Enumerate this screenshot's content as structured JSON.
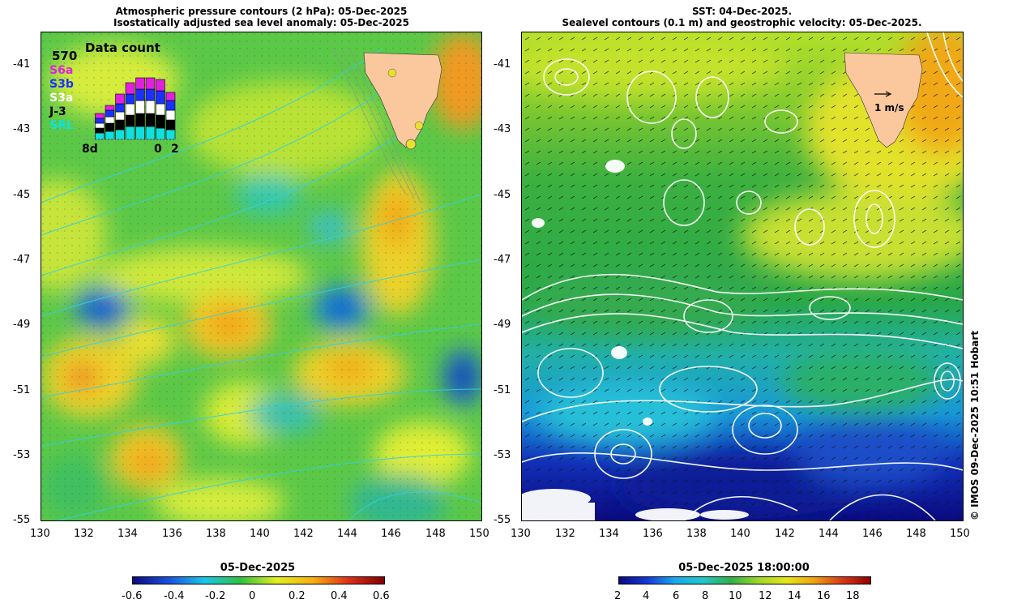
{
  "left_panel": {
    "title_line1": "Atmospheric pressure contours (2 hPa): 05-Dec-2025",
    "title_line2": "Isostatically adjusted sea level anomaly: 05-Dec-2025",
    "inset": {
      "title": "Data count",
      "count": "570",
      "missions": [
        {
          "label": "S6a",
          "color": "#e020e0"
        },
        {
          "label": "S3b",
          "color": "#1a30ff"
        },
        {
          "label": "S3a",
          "color": "#ffffff"
        },
        {
          "label": "J-3",
          "color": "#000000"
        },
        {
          "label": "SRL",
          "color": "#10e0e0"
        }
      ],
      "x_start": "8d",
      "x_mid": "0",
      "x_end": "2"
    },
    "colorbar": {
      "title": "05-Dec-2025",
      "ticks": [
        "-0.6",
        "-0.4",
        "-0.2",
        "0",
        "0.2",
        "0.4",
        "0.6"
      ]
    }
  },
  "right_panel": {
    "title_line1": "SST: 04-Dec-2025.",
    "title_line2": "Sealevel contours (0.1 m) and geostrophic velocity: 05-Dec-2025.",
    "velocity_label": "1 m/s",
    "colorbar": {
      "title": "05-Dec-2025 18:00:00",
      "ticks": [
        "2",
        "4",
        "6",
        "8",
        "10",
        "12",
        "14",
        "16",
        "18"
      ]
    }
  },
  "axes": {
    "lat_labels": [
      "-41",
      "-43",
      "-45",
      "-47",
      "-49",
      "-51",
      "-53",
      "-55"
    ],
    "lon_labels": [
      "130",
      "132",
      "134",
      "136",
      "138",
      "140",
      "142",
      "144",
      "146",
      "148",
      "150"
    ]
  },
  "credit": "© IMOS 09-Dec-2025 10:51 Hobart",
  "colors": {
    "land": "#fbc89d",
    "sla_ramp": [
      "#0a0a80",
      "#1a50e0",
      "#18c8e8",
      "#30c040",
      "#e0f020",
      "#f8b010",
      "#e03018",
      "#800000"
    ],
    "sst_ramp": [
      "#0a0a80",
      "#1438d8",
      "#18a8f0",
      "#20c8c8",
      "#30b048",
      "#9ed828",
      "#e6e618",
      "#f0a010",
      "#d83818",
      "#900000"
    ]
  }
}
